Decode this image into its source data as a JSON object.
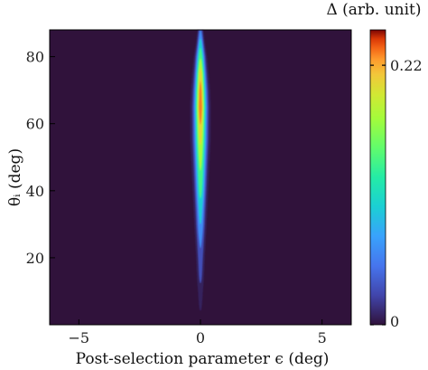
{
  "chart_data": {
    "type": "heatmap",
    "xlabel": "Post-selection parameter ϵ (deg)",
    "ylabel": "θᵢ (deg)",
    "colorbar_label": "Δ (arb. unit)",
    "xlim": [
      -6.2,
      6.2
    ],
    "ylim": [
      0,
      88
    ],
    "x_ticks": [
      -5,
      0,
      5
    ],
    "x_tick_labels": [
      "−5",
      "0",
      "5"
    ],
    "y_ticks": [
      20,
      40,
      60,
      80
    ],
    "y_tick_labels": [
      "20",
      "40",
      "60",
      "80"
    ],
    "colorbar_range": [
      0,
      0.25
    ],
    "colorbar_ticks": [
      0,
      0.22
    ],
    "colorbar_tick_labels": [
      "0",
      "0.22"
    ],
    "colormap": "turbo",
    "background_color": "#30123b",
    "peak_center_x": 0,
    "peak_max_value": 0.25,
    "peak_theta_of_max": 66,
    "profile": [
      {
        "theta": 2,
        "peak": 0.0,
        "half_width": 0.05
      },
      {
        "theta": 5,
        "peak": 0.01,
        "half_width": 0.06
      },
      {
        "theta": 10,
        "peak": 0.02,
        "half_width": 0.07
      },
      {
        "theta": 15,
        "peak": 0.04,
        "half_width": 0.08
      },
      {
        "theta": 20,
        "peak": 0.05,
        "half_width": 0.09
      },
      {
        "theta": 25,
        "peak": 0.07,
        "half_width": 0.1
      },
      {
        "theta": 30,
        "peak": 0.1,
        "half_width": 0.11
      },
      {
        "theta": 35,
        "peak": 0.12,
        "half_width": 0.12
      },
      {
        "theta": 40,
        "peak": 0.15,
        "half_width": 0.13
      },
      {
        "theta": 45,
        "peak": 0.17,
        "half_width": 0.14
      },
      {
        "theta": 50,
        "peak": 0.19,
        "half_width": 0.15
      },
      {
        "theta": 55,
        "peak": 0.21,
        "half_width": 0.16
      },
      {
        "theta": 60,
        "peak": 0.23,
        "half_width": 0.16
      },
      {
        "theta": 65,
        "peak": 0.25,
        "half_width": 0.16
      },
      {
        "theta": 70,
        "peak": 0.24,
        "half_width": 0.15
      },
      {
        "theta": 75,
        "peak": 0.22,
        "half_width": 0.13
      },
      {
        "theta": 80,
        "peak": 0.17,
        "half_width": 0.11
      },
      {
        "theta": 84,
        "peak": 0.12,
        "half_width": 0.08
      },
      {
        "theta": 88,
        "peak": 0.06,
        "half_width": 0.06
      }
    ]
  }
}
